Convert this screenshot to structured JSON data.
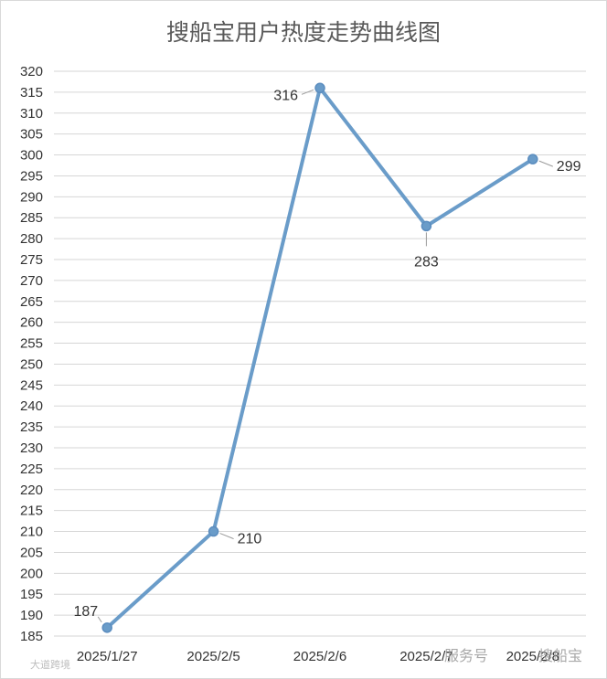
{
  "chart_data": {
    "type": "line",
    "title": "搜船宝用户热度走势曲线图",
    "categories": [
      "2025/1/27",
      "2025/2/5",
      "2025/2/6",
      "2025/2/7",
      "2025/2/8"
    ],
    "values": [
      187,
      210,
      316,
      283,
      299
    ],
    "data_labels": [
      "187",
      "210",
      "316",
      "283",
      "299"
    ],
    "ylim": [
      185,
      320
    ],
    "ytick_step": 5,
    "yticks": [
      "185",
      "190",
      "195",
      "200",
      "205",
      "210",
      "215",
      "220",
      "225",
      "230",
      "235",
      "240",
      "245",
      "250",
      "255",
      "260",
      "265",
      "270",
      "275",
      "280",
      "285",
      "290",
      "295",
      "300",
      "305",
      "310",
      "315",
      "320"
    ],
    "grid": true,
    "legend": "none",
    "line_color": "#6a9cc9"
  },
  "watermark": {
    "right_text": "服务号",
    "right_text_2": "搜船宝",
    "left_text": "大道跨境"
  }
}
